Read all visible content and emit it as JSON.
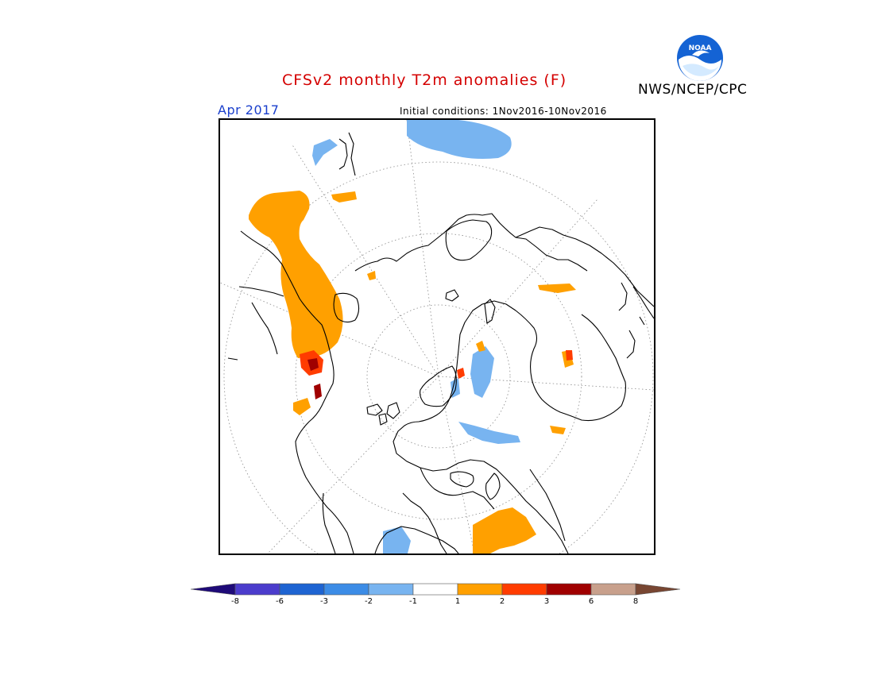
{
  "title": "CFSv2 monthly T2m anomalies (F)",
  "agency": "NWS/NCEP/CPC",
  "logo_text": "NOAA",
  "target_month": "Apr 2017",
  "initial_conditions": "Initial conditions: 1Nov2016-10Nov2016",
  "colors": {
    "title": "#d40000",
    "date": "#1a3fcc",
    "logo_blue": "#1463d4",
    "continent_lines": "#000000",
    "grid_lines": "#888888"
  },
  "colorbar": {
    "ticks": [
      "-8",
      "-6",
      "-3",
      "-2",
      "-1",
      "1",
      "2",
      "3",
      "6",
      "8"
    ],
    "colors": [
      "#1e0a78",
      "#4b3ccc",
      "#1e64d2",
      "#3c8ce6",
      "#78b4f0",
      "#ffffff",
      "#ffa000",
      "#ff3c00",
      "#a00000",
      "#c8a08c",
      "#784632"
    ]
  }
}
